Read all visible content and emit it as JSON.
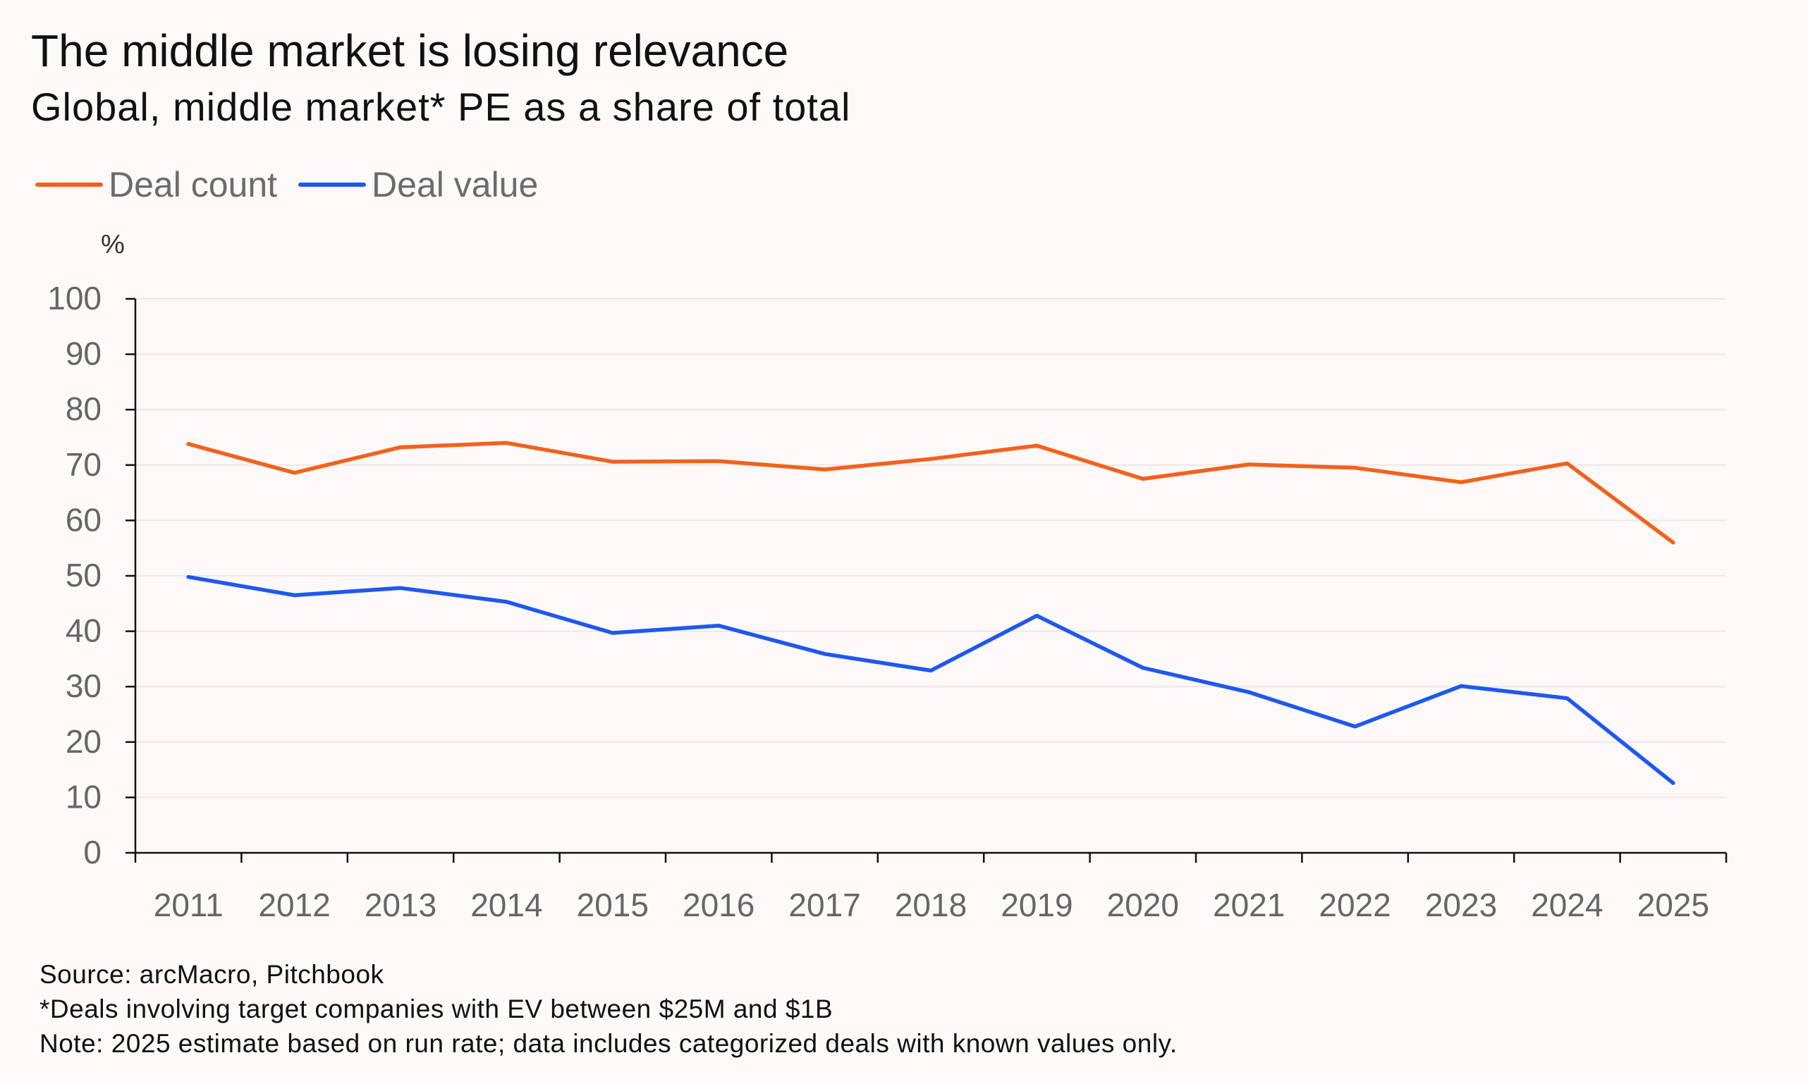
{
  "chart_data": {
    "type": "line",
    "title": "The middle market is losing relevance",
    "subtitle": "Global, middle market* PE as a share of total",
    "ylabel": "%",
    "xlabel": "",
    "ylim": [
      0,
      100
    ],
    "yticks": [
      "0",
      "10",
      "20",
      "30",
      "40",
      "50",
      "60",
      "70",
      "80",
      "90",
      "100"
    ],
    "categories": [
      "2011",
      "2012",
      "2013",
      "2014",
      "2015",
      "2016",
      "2017",
      "2018",
      "2019",
      "2020",
      "2021",
      "2022",
      "2023",
      "2024",
      "2025"
    ],
    "series": [
      {
        "name": "Deal count",
        "color": "#f2611d",
        "values": [
          73.8,
          68.6,
          73.2,
          74.0,
          70.6,
          70.7,
          69.2,
          71.1,
          73.5,
          67.5,
          70.1,
          69.5,
          66.9,
          70.3,
          56.0
        ]
      },
      {
        "name": "Deal value",
        "color": "#1e58f0",
        "values": [
          49.8,
          46.5,
          47.8,
          45.3,
          39.7,
          41.0,
          35.9,
          32.9,
          42.8,
          33.4,
          29.0,
          22.8,
          30.1,
          27.9,
          12.6
        ]
      }
    ],
    "grid": true,
    "legend_position": "top-left"
  },
  "footer": {
    "source": "Source: arcMacro, Pitchbook",
    "definition": "*Deals involving target companies with EV between $25M and $1B",
    "note": "Note: 2025 estimate based on run rate; data includes categorized deals with known values only."
  }
}
